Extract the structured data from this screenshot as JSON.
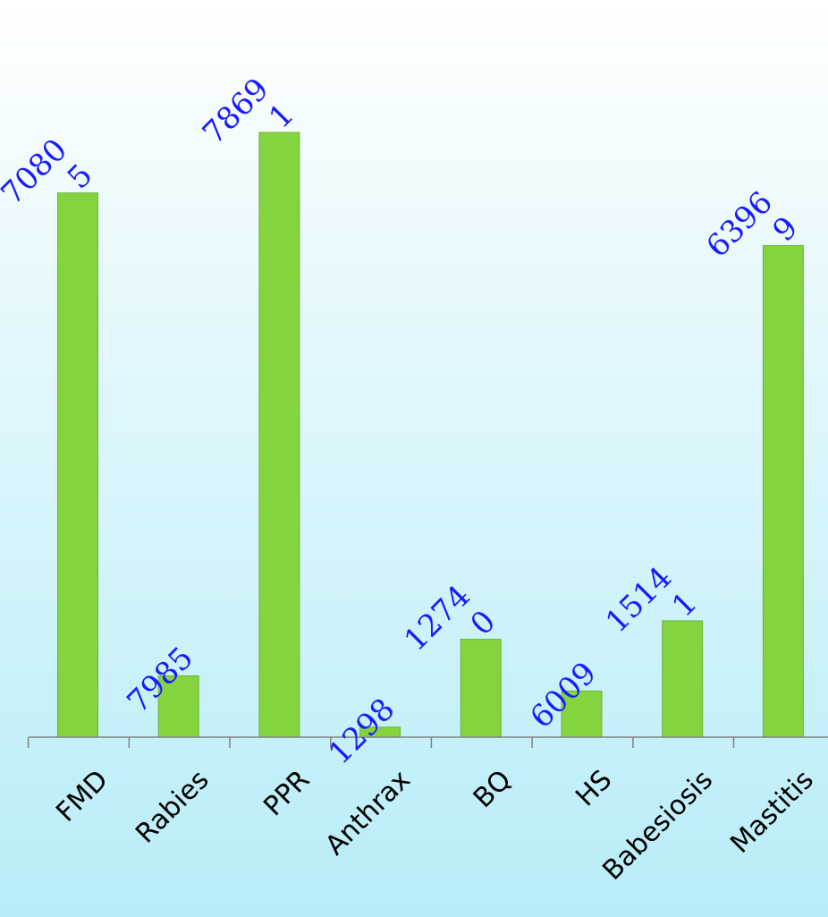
{
  "chart_data": {
    "type": "bar",
    "categories": [
      "FMD",
      "Rabies",
      "PPR",
      "Anthrax",
      "BQ",
      "HS",
      "Babesiosis",
      "Mastitis"
    ],
    "values": [
      70805,
      7985,
      78691,
      1298,
      12740,
      6009,
      15141,
      63969
    ],
    "value_labels": [
      [
        "7080",
        "5"
      ],
      [
        "7985"
      ],
      [
        "7869",
        "1"
      ],
      [
        "1298"
      ],
      [
        "1274",
        "0"
      ],
      [
        "6009"
      ],
      [
        "1514",
        "1"
      ],
      [
        "6396",
        "9"
      ]
    ],
    "title": "",
    "xlabel": "",
    "ylabel": "",
    "ylim": [
      0,
      78691
    ],
    "grid": false,
    "colors": {
      "bar": "#84d440",
      "bar_stroke": "#6cb52f",
      "data_label": "#1a1aff",
      "axis": "#808080"
    }
  }
}
